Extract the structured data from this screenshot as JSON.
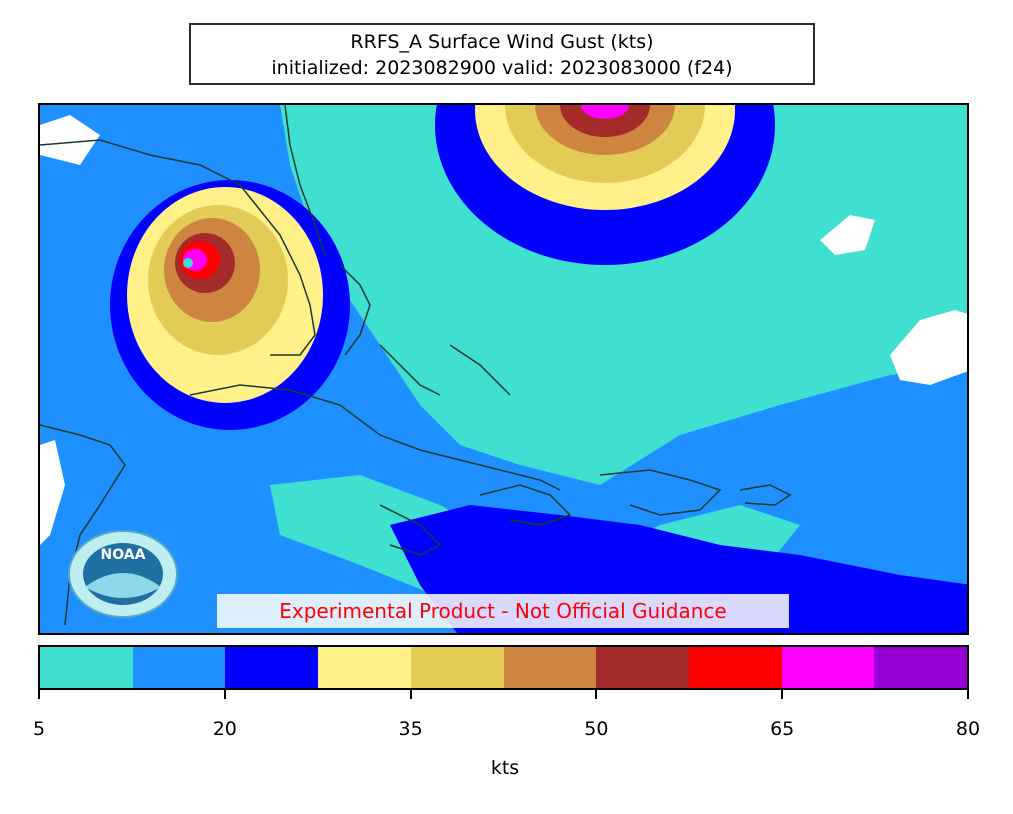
{
  "title": {
    "line1": "RRFS_A Surface Wind Gust (kts)",
    "line2": "initialized: 2023082900 valid: 2023083000 (f24)"
  },
  "disclaimer": "Experimental Product - Not Official Guidance",
  "logo_text": "NOAA",
  "colorbar": {
    "label": "kts",
    "ticks": [
      "5",
      "20",
      "35",
      "50",
      "65",
      "80"
    ],
    "tick_values": [
      5,
      20,
      35,
      50,
      65,
      80
    ],
    "range": [
      5,
      80
    ],
    "colors": [
      "#40e0d0",
      "#1e90ff",
      "#0000ff",
      "#fff08a",
      "#e2cc55",
      "#cd853f",
      "#a52a2a",
      "#ff0000",
      "#ff00ff",
      "#9400d3"
    ]
  },
  "palette": {
    "c5": "#40e0d0",
    "c12": "#1e90ff",
    "c20": "#0000ff",
    "c27": "#fff08a",
    "c35": "#e2cc55",
    "c42": "#cd853f",
    "c50": "#a52a2a",
    "c57": "#ff0000",
    "c65": "#ff00ff",
    "c72": "#9400d3",
    "calm": "#ffffff",
    "coast": "#1a3a2a"
  }
}
